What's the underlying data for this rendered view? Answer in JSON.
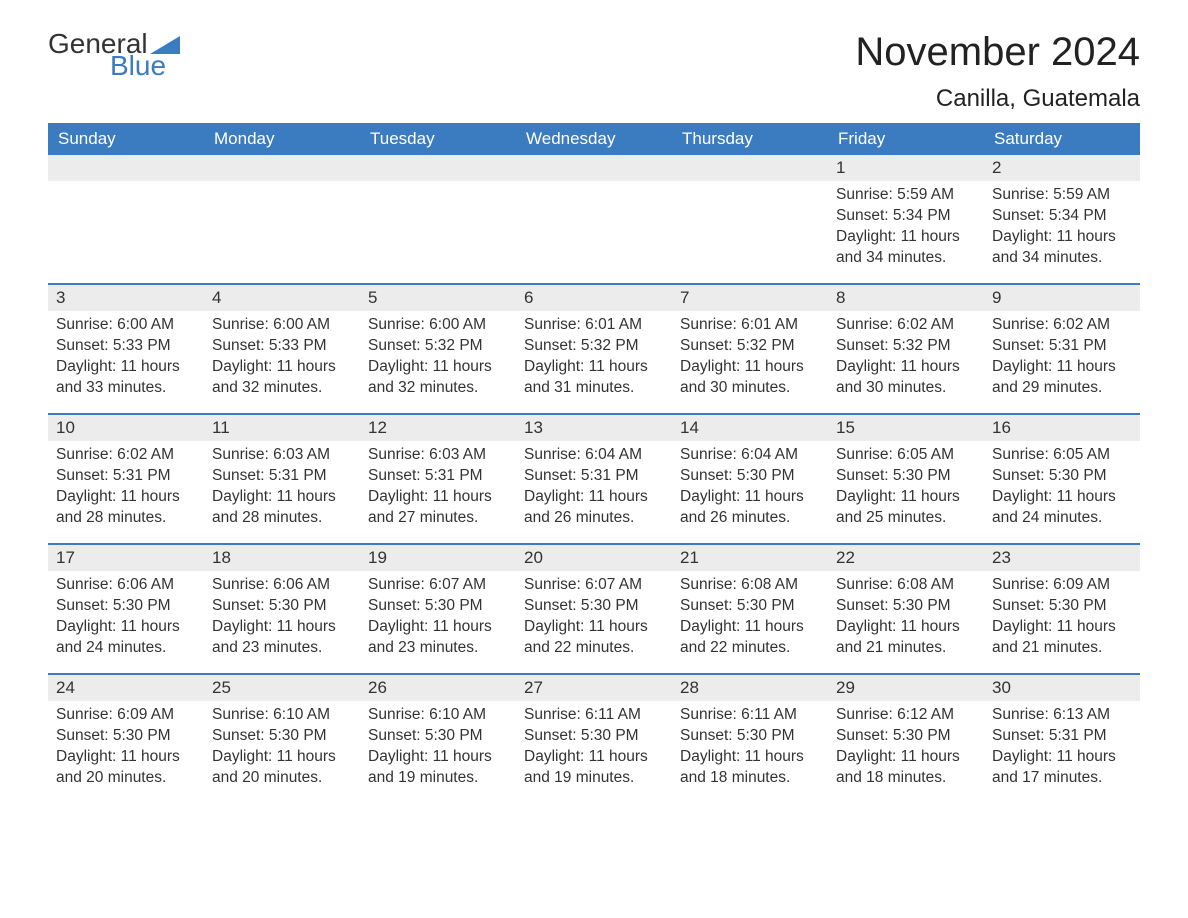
{
  "logo": {
    "word1": "General",
    "word2": "Blue",
    "tri_color": "#3b7bbf"
  },
  "title": "November 2024",
  "location": "Canilla, Guatemala",
  "colors": {
    "header_bg": "#3b7bbf",
    "header_text": "#ffffff",
    "daynum_bg": "#ececec",
    "text": "#333333",
    "week_divider": "#3b7bbf",
    "background": "#ffffff"
  },
  "typography": {
    "title_fontsize": 40,
    "location_fontsize": 24,
    "header_fontsize": 17,
    "daynum_fontsize": 17,
    "body_fontsize": 15.5
  },
  "weekdays": [
    "Sunday",
    "Monday",
    "Tuesday",
    "Wednesday",
    "Thursday",
    "Friday",
    "Saturday"
  ],
  "weeks": [
    [
      {
        "empty": true
      },
      {
        "empty": true
      },
      {
        "empty": true
      },
      {
        "empty": true
      },
      {
        "empty": true
      },
      {
        "num": "1",
        "sunrise": "Sunrise: 5:59 AM",
        "sunset": "Sunset: 5:34 PM",
        "daylight": "Daylight: 11 hours and 34 minutes."
      },
      {
        "num": "2",
        "sunrise": "Sunrise: 5:59 AM",
        "sunset": "Sunset: 5:34 PM",
        "daylight": "Daylight: 11 hours and 34 minutes."
      }
    ],
    [
      {
        "num": "3",
        "sunrise": "Sunrise: 6:00 AM",
        "sunset": "Sunset: 5:33 PM",
        "daylight": "Daylight: 11 hours and 33 minutes."
      },
      {
        "num": "4",
        "sunrise": "Sunrise: 6:00 AM",
        "sunset": "Sunset: 5:33 PM",
        "daylight": "Daylight: 11 hours and 32 minutes."
      },
      {
        "num": "5",
        "sunrise": "Sunrise: 6:00 AM",
        "sunset": "Sunset: 5:32 PM",
        "daylight": "Daylight: 11 hours and 32 minutes."
      },
      {
        "num": "6",
        "sunrise": "Sunrise: 6:01 AM",
        "sunset": "Sunset: 5:32 PM",
        "daylight": "Daylight: 11 hours and 31 minutes."
      },
      {
        "num": "7",
        "sunrise": "Sunrise: 6:01 AM",
        "sunset": "Sunset: 5:32 PM",
        "daylight": "Daylight: 11 hours and 30 minutes."
      },
      {
        "num": "8",
        "sunrise": "Sunrise: 6:02 AM",
        "sunset": "Sunset: 5:32 PM",
        "daylight": "Daylight: 11 hours and 30 minutes."
      },
      {
        "num": "9",
        "sunrise": "Sunrise: 6:02 AM",
        "sunset": "Sunset: 5:31 PM",
        "daylight": "Daylight: 11 hours and 29 minutes."
      }
    ],
    [
      {
        "num": "10",
        "sunrise": "Sunrise: 6:02 AM",
        "sunset": "Sunset: 5:31 PM",
        "daylight": "Daylight: 11 hours and 28 minutes."
      },
      {
        "num": "11",
        "sunrise": "Sunrise: 6:03 AM",
        "sunset": "Sunset: 5:31 PM",
        "daylight": "Daylight: 11 hours and 28 minutes."
      },
      {
        "num": "12",
        "sunrise": "Sunrise: 6:03 AM",
        "sunset": "Sunset: 5:31 PM",
        "daylight": "Daylight: 11 hours and 27 minutes."
      },
      {
        "num": "13",
        "sunrise": "Sunrise: 6:04 AM",
        "sunset": "Sunset: 5:31 PM",
        "daylight": "Daylight: 11 hours and 26 minutes."
      },
      {
        "num": "14",
        "sunrise": "Sunrise: 6:04 AM",
        "sunset": "Sunset: 5:30 PM",
        "daylight": "Daylight: 11 hours and 26 minutes."
      },
      {
        "num": "15",
        "sunrise": "Sunrise: 6:05 AM",
        "sunset": "Sunset: 5:30 PM",
        "daylight": "Daylight: 11 hours and 25 minutes."
      },
      {
        "num": "16",
        "sunrise": "Sunrise: 6:05 AM",
        "sunset": "Sunset: 5:30 PM",
        "daylight": "Daylight: 11 hours and 24 minutes."
      }
    ],
    [
      {
        "num": "17",
        "sunrise": "Sunrise: 6:06 AM",
        "sunset": "Sunset: 5:30 PM",
        "daylight": "Daylight: 11 hours and 24 minutes."
      },
      {
        "num": "18",
        "sunrise": "Sunrise: 6:06 AM",
        "sunset": "Sunset: 5:30 PM",
        "daylight": "Daylight: 11 hours and 23 minutes."
      },
      {
        "num": "19",
        "sunrise": "Sunrise: 6:07 AM",
        "sunset": "Sunset: 5:30 PM",
        "daylight": "Daylight: 11 hours and 23 minutes."
      },
      {
        "num": "20",
        "sunrise": "Sunrise: 6:07 AM",
        "sunset": "Sunset: 5:30 PM",
        "daylight": "Daylight: 11 hours and 22 minutes."
      },
      {
        "num": "21",
        "sunrise": "Sunrise: 6:08 AM",
        "sunset": "Sunset: 5:30 PM",
        "daylight": "Daylight: 11 hours and 22 minutes."
      },
      {
        "num": "22",
        "sunrise": "Sunrise: 6:08 AM",
        "sunset": "Sunset: 5:30 PM",
        "daylight": "Daylight: 11 hours and 21 minutes."
      },
      {
        "num": "23",
        "sunrise": "Sunrise: 6:09 AM",
        "sunset": "Sunset: 5:30 PM",
        "daylight": "Daylight: 11 hours and 21 minutes."
      }
    ],
    [
      {
        "num": "24",
        "sunrise": "Sunrise: 6:09 AM",
        "sunset": "Sunset: 5:30 PM",
        "daylight": "Daylight: 11 hours and 20 minutes."
      },
      {
        "num": "25",
        "sunrise": "Sunrise: 6:10 AM",
        "sunset": "Sunset: 5:30 PM",
        "daylight": "Daylight: 11 hours and 20 minutes."
      },
      {
        "num": "26",
        "sunrise": "Sunrise: 6:10 AM",
        "sunset": "Sunset: 5:30 PM",
        "daylight": "Daylight: 11 hours and 19 minutes."
      },
      {
        "num": "27",
        "sunrise": "Sunrise: 6:11 AM",
        "sunset": "Sunset: 5:30 PM",
        "daylight": "Daylight: 11 hours and 19 minutes."
      },
      {
        "num": "28",
        "sunrise": "Sunrise: 6:11 AM",
        "sunset": "Sunset: 5:30 PM",
        "daylight": "Daylight: 11 hours and 18 minutes."
      },
      {
        "num": "29",
        "sunrise": "Sunrise: 6:12 AM",
        "sunset": "Sunset: 5:30 PM",
        "daylight": "Daylight: 11 hours and 18 minutes."
      },
      {
        "num": "30",
        "sunrise": "Sunrise: 6:13 AM",
        "sunset": "Sunset: 5:31 PM",
        "daylight": "Daylight: 11 hours and 17 minutes."
      }
    ]
  ]
}
